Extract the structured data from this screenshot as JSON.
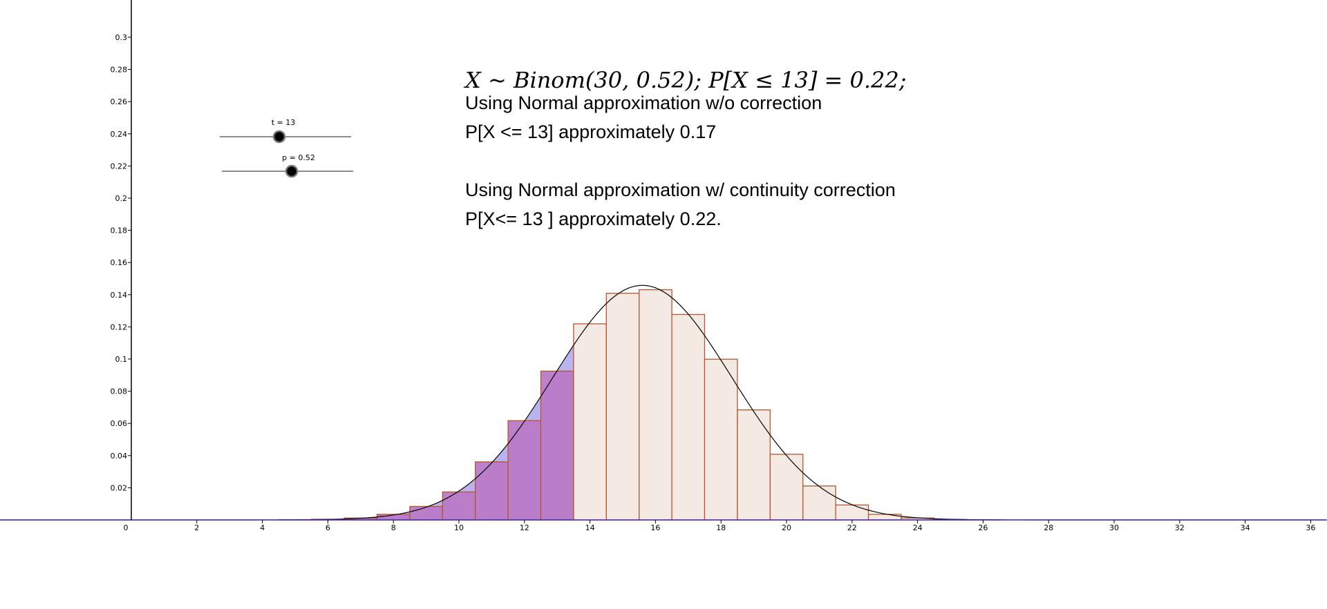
{
  "colors": {
    "bar_fill": "#f5eae3",
    "bar_stroke": "#b5552a",
    "shade_fill": "#b87ac6",
    "shade_band_fill": "#b9b3ef",
    "curve": "#000000",
    "axis": "#000000",
    "x_axis_line": "#4a2aa6"
  },
  "sliders": [
    {
      "label": "t = 13",
      "value": 13
    },
    {
      "label": "p = 0.52",
      "value": 0.52
    }
  ],
  "text": {
    "formula": "X ~ Binom(30, 0.52); P[X ≤ 13] = 0.22;",
    "line1": "Using Normal approximation w/o correction",
    "line2": "P[X <= 13] approximately 0.17",
    "line3": "Using Normal approximation w/ continuity correction",
    "line4": "P[X<= 13  ] approximately 0.22."
  },
  "chart_data": {
    "type": "bar",
    "description_kind": "binomial histogram with normal curve overlay",
    "n": 30,
    "p": 0.52,
    "t": 13,
    "x": [
      4,
      5,
      6,
      7,
      8,
      9,
      10,
      11,
      12,
      13,
      14,
      15,
      16,
      17,
      18,
      19,
      20,
      21,
      22,
      23,
      24,
      25,
      26
    ],
    "values": [
      0.0,
      0.0001,
      0.0004,
      0.0012,
      0.0035,
      0.0084,
      0.0174,
      0.0361,
      0.0617,
      0.0925,
      0.1219,
      0.1409,
      0.1431,
      0.1277,
      0.0999,
      0.0684,
      0.0408,
      0.0211,
      0.0093,
      0.0035,
      0.0012,
      0.0003,
      0.0001
    ],
    "normal_curve": {
      "mean": 15.6,
      "sd": 2.736
    },
    "shaded_region": {
      "curve_from": -4,
      "curve_to": 13.5,
      "bars_upto": 13
    },
    "xlim": [
      -4,
      36.5
    ],
    "ylim": [
      0,
      0.3
    ],
    "x_ticks": [
      0,
      2,
      4,
      6,
      8,
      10,
      12,
      14,
      16,
      18,
      20,
      22,
      24,
      26,
      28,
      30,
      32,
      34,
      36
    ],
    "y_ticks": [
      "0.02",
      "0.04",
      "0.06",
      "0.08",
      "0.1",
      "0.12",
      "0.14",
      "0.16",
      "0.18",
      "0.2",
      "0.22",
      "0.24",
      "0.26",
      "0.28",
      "0.3"
    ],
    "x_tick_labels": [
      "0",
      "2",
      "4",
      "6",
      "8",
      "10",
      "12",
      "14",
      "16",
      "18",
      "20",
      "22",
      "24",
      "26",
      "28",
      "30",
      "32",
      "34",
      "36"
    ],
    "xlabel": "",
    "ylabel": ""
  }
}
